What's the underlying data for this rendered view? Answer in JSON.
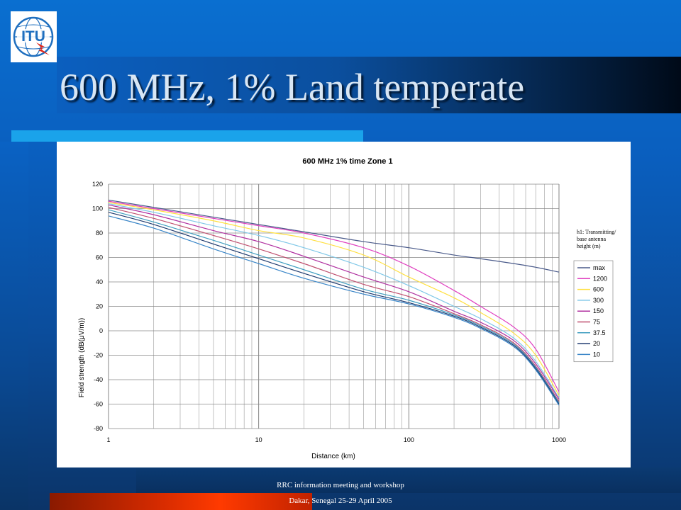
{
  "slide": {
    "title": "600 MHz, 1% Land temperate",
    "footer_line1": "RRC information meeting and workshop",
    "footer_line2": "Dakar, Senegal 25-29 April 2005",
    "logo_text": "ITU",
    "colors": {
      "logo_blue": "#1f6fbf",
      "logo_red": "#e0261b",
      "accent": "#1aa3ea"
    }
  },
  "chart_data": {
    "type": "line",
    "title": "600 MHz 1% time Zone 1",
    "xlabel": "Distance (km)",
    "ylabel": "Field strength  (dB(μV/m))",
    "xscale": "log",
    "xlim": [
      1,
      1000
    ],
    "ylim": [
      -80,
      120
    ],
    "xticks": [
      "1",
      "10",
      "100",
      "1000"
    ],
    "yticks": [
      "120",
      "100",
      "80",
      "60",
      "40",
      "20",
      "0",
      "-20",
      "-40",
      "-60",
      "-80"
    ],
    "grid": true,
    "legend_note": "h1: Transmitting/ base antenna height (m)",
    "legend_placement": "right",
    "x": [
      1,
      2,
      5,
      10,
      20,
      50,
      100,
      200,
      300,
      500,
      700,
      1000
    ],
    "series": [
      {
        "name": "max",
        "color": "#4a5a8a",
        "values": [
          107,
          101,
          93,
          87,
          81,
          73,
          68,
          62,
          59,
          55,
          52,
          48
        ]
      },
      {
        "name": "1200",
        "color": "#e040c0",
        "values": [
          106,
          100,
          92,
          86,
          80,
          68,
          53,
          33,
          20,
          3,
          -15,
          -50
        ]
      },
      {
        "name": "600",
        "color": "#ffe040",
        "values": [
          105,
          99,
          90,
          82,
          76,
          62,
          44,
          27,
          15,
          -2,
          -20,
          -53
        ]
      },
      {
        "name": "300",
        "color": "#80c8e8",
        "values": [
          104,
          97,
          86,
          78,
          68,
          52,
          37,
          20,
          10,
          -6,
          -25,
          -55
        ]
      },
      {
        "name": "150",
        "color": "#b030a0",
        "values": [
          103,
          95,
          82,
          73,
          61,
          44,
          32,
          16,
          7,
          -8,
          -27,
          -56
        ]
      },
      {
        "name": "75",
        "color": "#c05070",
        "values": [
          101,
          92,
          78,
          67,
          55,
          38,
          28,
          14,
          5,
          -10,
          -29,
          -58
        ]
      },
      {
        "name": "37.5",
        "color": "#409ec0",
        "values": [
          99,
          89,
          74,
          62,
          50,
          34,
          25,
          13,
          4,
          -11,
          -30,
          -59
        ]
      },
      {
        "name": "20",
        "color": "#203c70",
        "values": [
          97,
          87,
          71,
          59,
          47,
          32,
          23,
          12,
          3,
          -12,
          -31,
          -60
        ]
      },
      {
        "name": "10",
        "color": "#3a86c8",
        "values": [
          94,
          84,
          67,
          55,
          43,
          30,
          22,
          11,
          2,
          -13,
          -32,
          -61
        ]
      }
    ]
  }
}
